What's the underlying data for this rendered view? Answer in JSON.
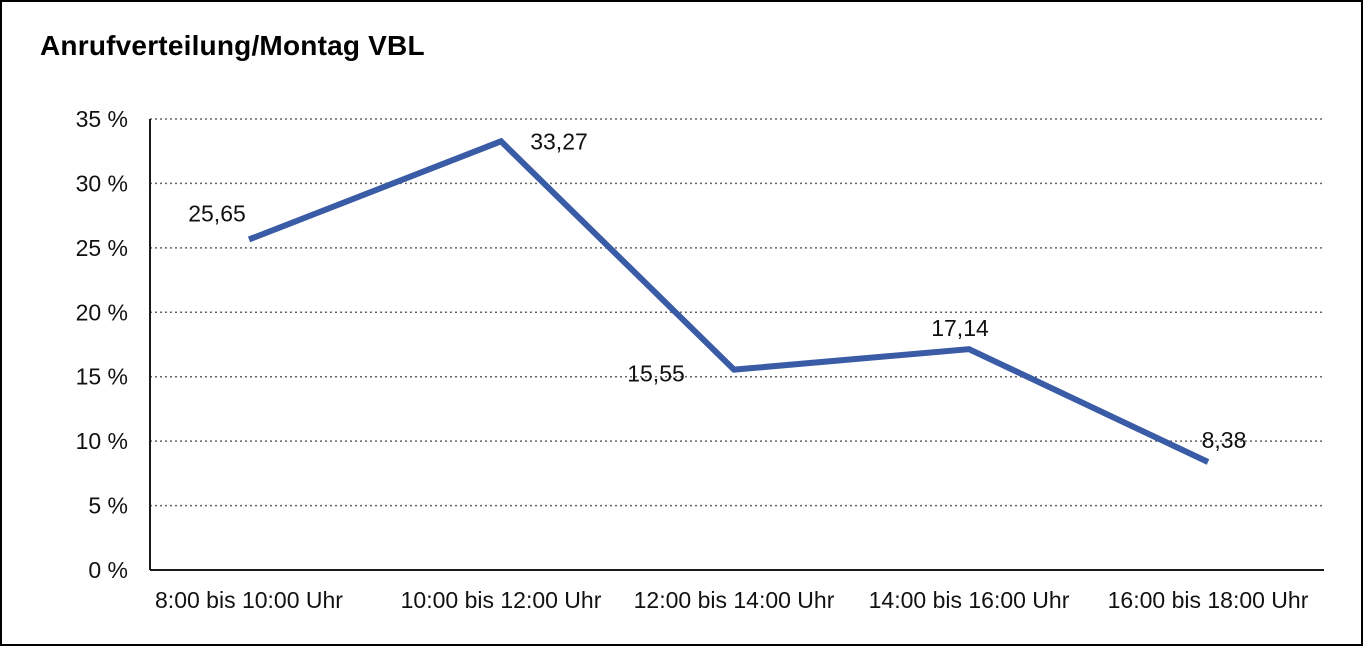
{
  "window": {
    "background": "#ffffff",
    "border_color": "#000000"
  },
  "chart_data": {
    "type": "line",
    "title": "Anrufverteilung/Montag VBL",
    "categories": [
      "8:00 bis 10:00 Uhr",
      "10:00 bis 12:00 Uhr",
      "12:00 bis 14:00 Uhr",
      "14:00 bis 16:00 Uhr",
      "16:00 bis 18:00 Uhr"
    ],
    "values": [
      25.65,
      33.27,
      15.55,
      17.14,
      8.38
    ],
    "point_labels": [
      "25,65",
      "33,27",
      "15,55",
      "17,14",
      "8,38"
    ],
    "xlabel": "",
    "ylabel": "",
    "ylim": [
      0,
      35
    ],
    "ytick_step": 5,
    "ytick_labels": [
      "0 %",
      "5 %",
      "10 %",
      "15 %",
      "20 %",
      "25 %",
      "30 %",
      "35 %"
    ],
    "grid": "horizontal-dotted",
    "legend": "none",
    "line_color": "#3A5BA5",
    "text_color": "#111111",
    "grid_color": "#666666",
    "axis_color": "#1a1a1a"
  }
}
